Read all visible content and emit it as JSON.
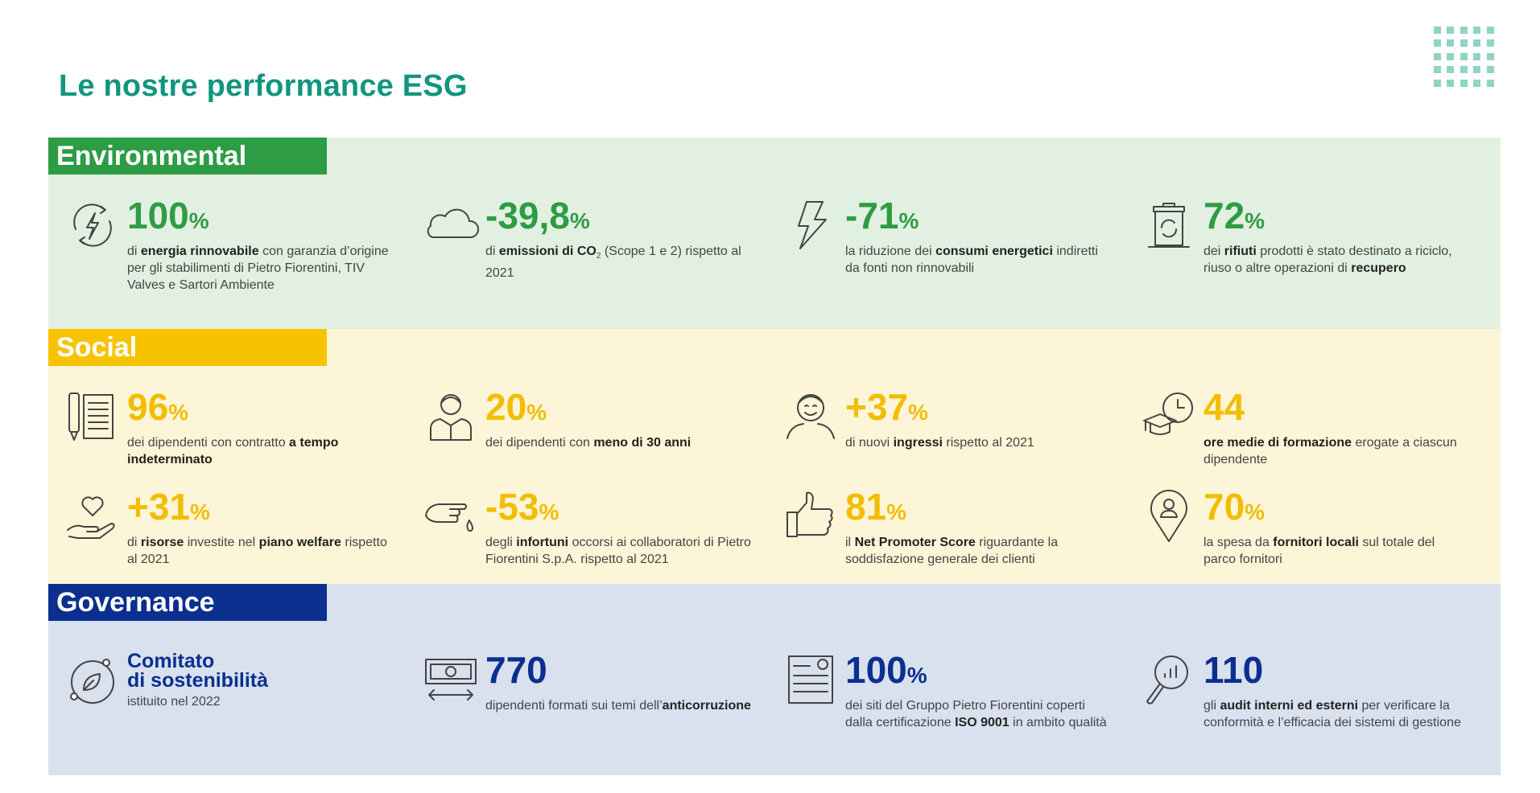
{
  "page": {
    "title": "Le nostre performance ESG"
  },
  "sections": {
    "environmental": {
      "label": "Environmental",
      "color": "#2e9c45",
      "items": [
        {
          "icon": "renewable-energy-icon",
          "value": "100",
          "unit": "%",
          "desc_parts": [
            "di ",
            "energia rinnovabile",
            " con garanzia d’origine per gli stabilimenti di Pietro Fiorentini, TIV Valves e Sartori Ambiente"
          ]
        },
        {
          "icon": "cloud-icon",
          "value": "-39,8",
          "unit": "%",
          "desc_parts": [
            "di ",
            "emissioni di CO",
            "2",
            " (Scope 1 e 2) rispetto al 2021"
          ]
        },
        {
          "icon": "lightning-icon",
          "value": "-71",
          "unit": "%",
          "desc_parts": [
            "la riduzione dei ",
            "consumi energetici",
            " indiretti da fonti non rinnovabili"
          ]
        },
        {
          "icon": "recycle-bin-icon",
          "value": "72",
          "unit": "%",
          "desc_parts": [
            "dei ",
            "rifiuti",
            " prodotti è stato destinato a riciclo, riuso o altre operazioni di ",
            "recupero"
          ]
        }
      ]
    },
    "social": {
      "label": "Social",
      "color": "#f7c300",
      "items": [
        {
          "icon": "contract-icon",
          "value": "96",
          "unit": "%",
          "desc_parts": [
            "dei dipendenti con contratto ",
            "a tempo indeterminato"
          ]
        },
        {
          "icon": "young-employee-icon",
          "value": "20",
          "unit": "%",
          "desc_parts": [
            "dei dipendenti con ",
            "meno di 30 anni"
          ]
        },
        {
          "icon": "smiling-person-icon",
          "value": "+37",
          "unit": "%",
          "desc_parts": [
            "di nuovi ",
            "ingressi",
            " rispetto al 2021"
          ]
        },
        {
          "icon": "graduation-clock-icon",
          "value": "44",
          "unit": "",
          "desc_parts": [
            "ore medie di formazione",
            " erogate a ciascun dipendente"
          ]
        },
        {
          "icon": "heart-hand-icon",
          "value": "+31",
          "unit": "%",
          "desc_parts": [
            "di ",
            "risorse",
            " investite nel ",
            "piano welfare",
            " rispetto al 2021"
          ]
        },
        {
          "icon": "injured-hand-icon",
          "value": "-53",
          "unit": "%",
          "desc_parts": [
            "degli ",
            "infortuni",
            " occorsi ai collaboratori di Pietro Fiorentini S.p.A. rispetto al 2021"
          ]
        },
        {
          "icon": "thumbs-up-icon",
          "value": "81",
          "unit": "%",
          "desc_parts": [
            "il ",
            "Net Promoter Score",
            " riguardante la soddisfazione generale dei clienti"
          ]
        },
        {
          "icon": "location-pin-icon",
          "value": "70",
          "unit": "%",
          "desc_parts": [
            "la spesa da ",
            "fornitori locali",
            " sul totale del parco fornitori"
          ]
        }
      ]
    },
    "governance": {
      "label": "Governance",
      "color": "#0a2f8f",
      "items": [
        {
          "icon": "committee-icon",
          "value_lines": [
            "Comitato",
            "di sostenibilità"
          ],
          "desc_parts": [
            "istituito nel 2022"
          ]
        },
        {
          "icon": "money-transfer-icon",
          "value": "770",
          "unit": "",
          "desc_parts": [
            "dipendenti formati sui temi dell’",
            "anticorruzione"
          ]
        },
        {
          "icon": "certificate-icon",
          "value": "100",
          "unit": "%",
          "desc_parts": [
            "dei siti del Gruppo Pietro Fiorentini coperti dalla certificazione ",
            "ISO 9001",
            " in ambito qualità"
          ]
        },
        {
          "icon": "magnifier-chart-icon",
          "value": "110",
          "unit": "",
          "desc_parts": [
            "gli ",
            "audit interni ed esterni",
            " per verificare la conformità e l’efficacia dei sistemi di gestione"
          ]
        }
      ]
    }
  }
}
